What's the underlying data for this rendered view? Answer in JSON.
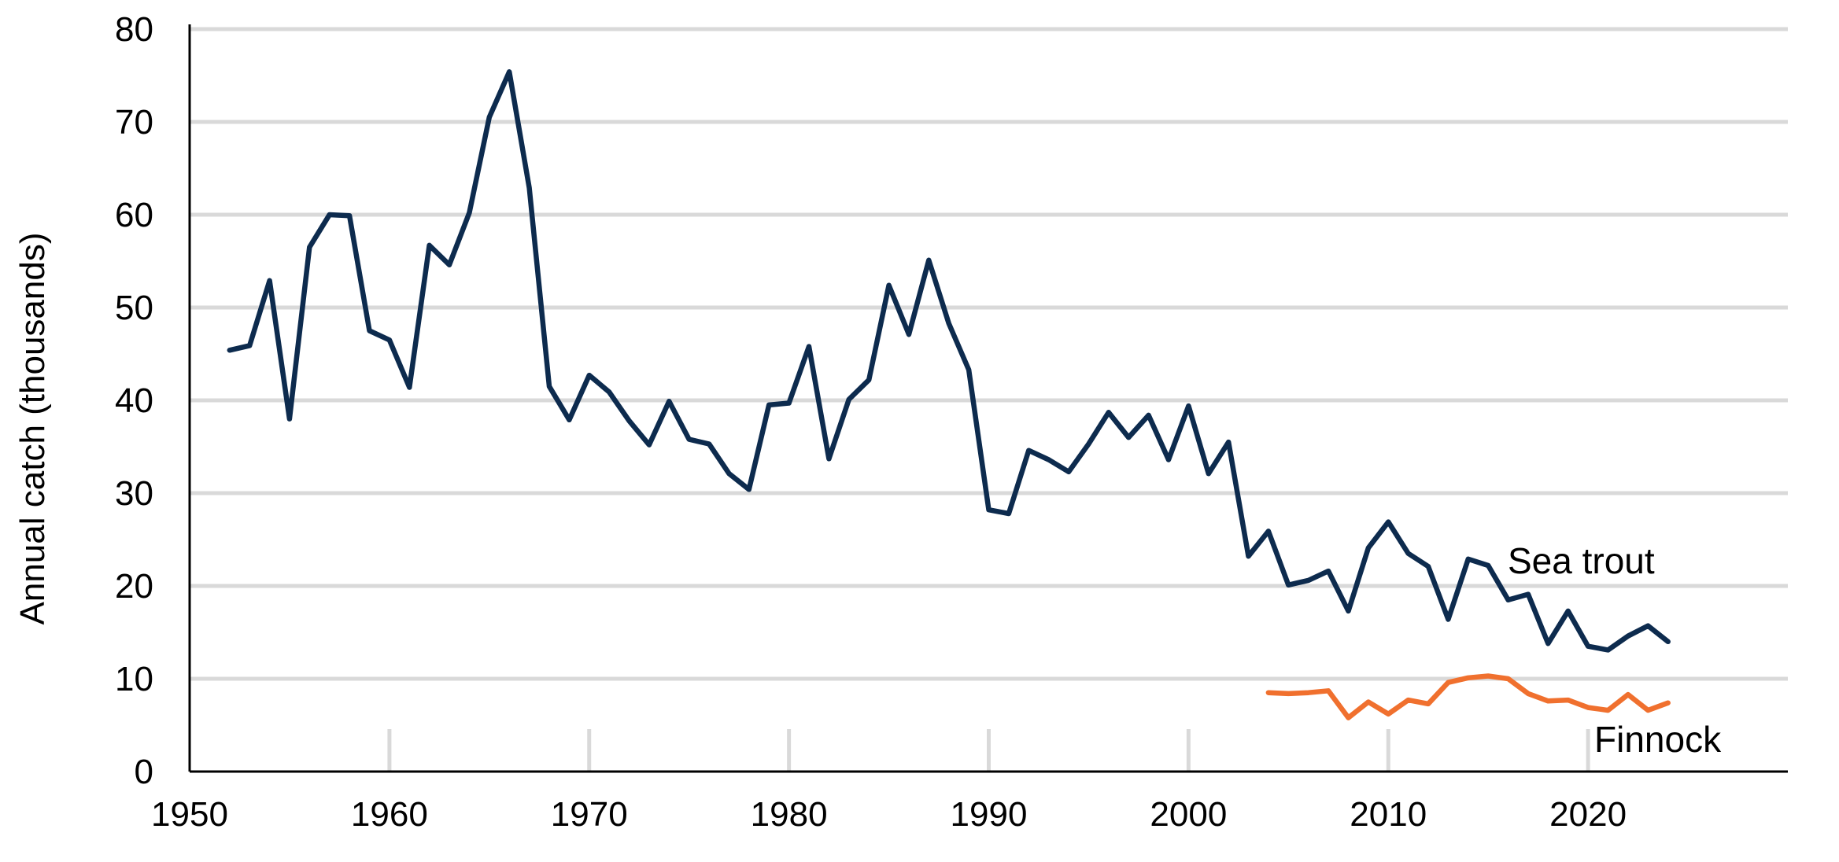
{
  "chart_data": {
    "type": "line",
    "title": "",
    "xlabel": "",
    "ylabel": "Annual catch (thousands)",
    "xlim": [
      1950,
      2030
    ],
    "ylim": [
      0,
      80
    ],
    "x_ticks": [
      "1950",
      "1960",
      "1970",
      "1980",
      "1990",
      "2000",
      "2010",
      "2020"
    ],
    "y_ticks": [
      "0",
      "10",
      "20",
      "30",
      "40",
      "50",
      "60",
      "70",
      "80"
    ],
    "grid": "horizontal",
    "legend": "inline labels",
    "series": [
      {
        "name": "Sea trout",
        "color": "#0d2b4e",
        "x": [
          1952,
          1953,
          1954,
          1955,
          1956,
          1957,
          1958,
          1959,
          1960,
          1961,
          1962,
          1963,
          1964,
          1965,
          1966,
          1967,
          1968,
          1969,
          1970,
          1971,
          1972,
          1973,
          1974,
          1975,
          1976,
          1977,
          1978,
          1979,
          1980,
          1981,
          1982,
          1983,
          1984,
          1985,
          1986,
          1987,
          1988,
          1989,
          1990,
          1991,
          1992,
          1993,
          1994,
          1995,
          1996,
          1997,
          1998,
          1999,
          2000,
          2001,
          2002,
          2003,
          2004,
          2005,
          2006,
          2007,
          2008,
          2009,
          2010,
          2011,
          2012,
          2013,
          2014,
          2015,
          2016,
          2017,
          2018,
          2019,
          2020,
          2021,
          2022,
          2023,
          2024
        ],
        "values": [
          45.4,
          45.9,
          52.9,
          38.0,
          56.5,
          60.0,
          59.9,
          47.5,
          46.5,
          41.4,
          56.7,
          54.6,
          60.2,
          70.5,
          75.4,
          62.9,
          41.5,
          37.9,
          42.7,
          40.9,
          37.8,
          35.2,
          39.9,
          35.8,
          35.3,
          32.1,
          30.4,
          39.5,
          39.7,
          45.8,
          33.7,
          40.1,
          42.2,
          52.4,
          47.1,
          55.1,
          48.3,
          43.3,
          28.2,
          27.8,
          34.6,
          33.6,
          32.3,
          35.3,
          38.7,
          36.0,
          38.4,
          33.6,
          39.4,
          32.1,
          35.5,
          23.2,
          25.9,
          20.1,
          20.6,
          21.6,
          17.3,
          24.1,
          26.9,
          23.5,
          22.1,
          16.4,
          22.9,
          22.2,
          18.5,
          19.1,
          13.8,
          17.3,
          13.5,
          13.1,
          14.6,
          15.7,
          14.0
        ]
      },
      {
        "name": "Finnock",
        "color": "#f0702e",
        "x": [
          2004,
          2005,
          2006,
          2007,
          2008,
          2009,
          2010,
          2011,
          2012,
          2013,
          2014,
          2015,
          2016,
          2017,
          2018,
          2019,
          2020,
          2021,
          2022,
          2023,
          2024
        ],
        "values": [
          8.5,
          8.4,
          8.5,
          8.7,
          5.8,
          7.5,
          6.2,
          7.7,
          7.3,
          9.6,
          10.1,
          10.3,
          10.0,
          8.4,
          7.6,
          7.7,
          6.9,
          6.6,
          8.3,
          6.6,
          7.4
        ]
      }
    ]
  }
}
